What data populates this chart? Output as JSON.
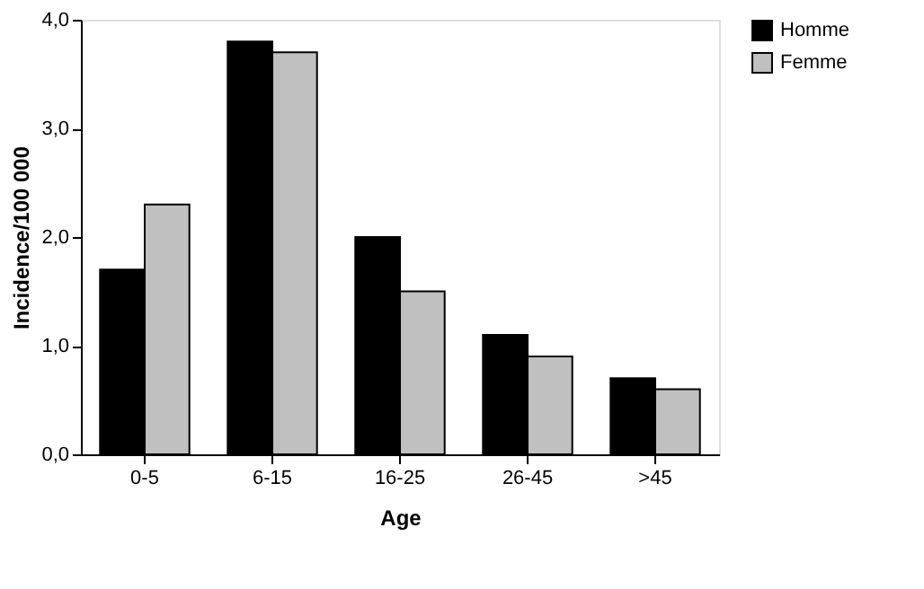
{
  "chart_data": {
    "type": "bar",
    "xlabel": "Age",
    "ylabel": "Incidence/100 000",
    "categories": [
      "0-5",
      "6-15",
      "16-25",
      "26-45",
      ">45"
    ],
    "series": [
      {
        "name": "Homme",
        "color": "#000000",
        "values": [
          1.7,
          3.8,
          2.0,
          1.1,
          0.7
        ]
      },
      {
        "name": "Femme",
        "color": "#c0c0c0",
        "values": [
          2.3,
          3.7,
          1.5,
          0.9,
          0.6
        ]
      }
    ],
    "ylim": [
      0,
      4
    ],
    "yticks": [
      {
        "value": 0,
        "label": "0,0"
      },
      {
        "value": 1,
        "label": "1,0"
      },
      {
        "value": 2,
        "label": "2,0"
      },
      {
        "value": 3,
        "label": "3,0"
      },
      {
        "value": 4,
        "label": "4,0"
      }
    ],
    "grid": false,
    "legend": "right"
  }
}
